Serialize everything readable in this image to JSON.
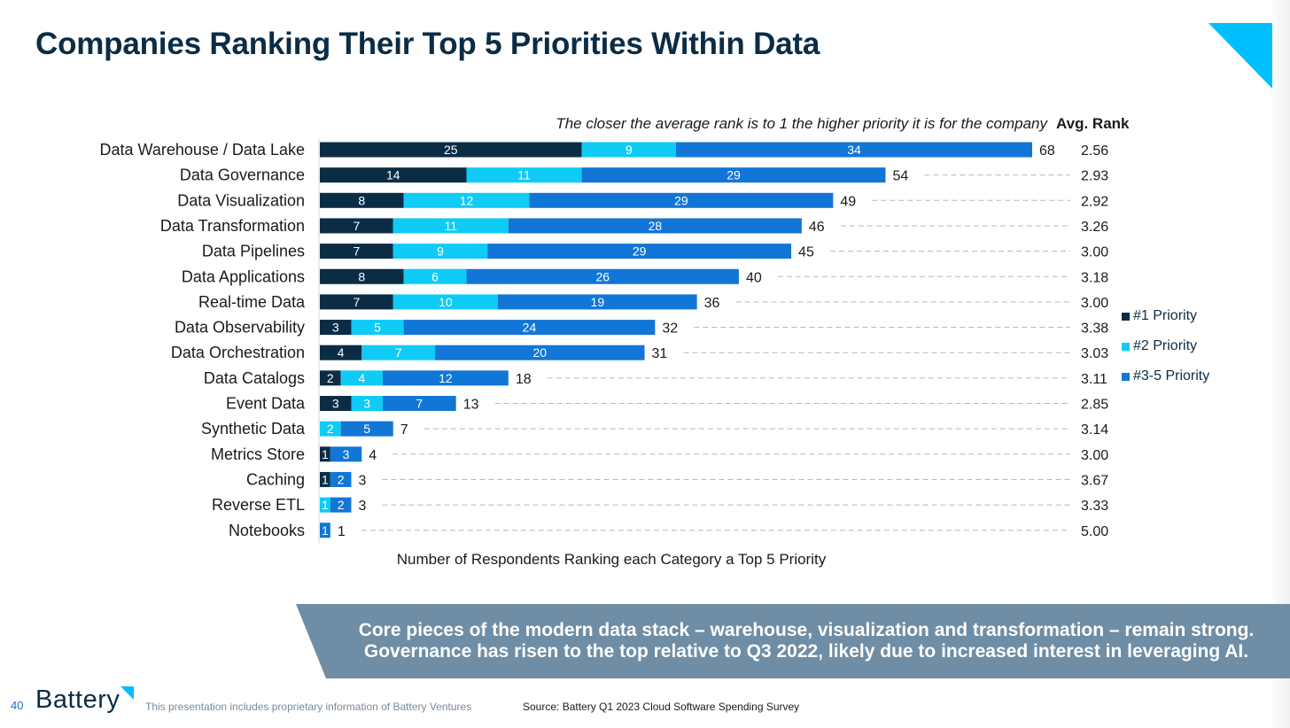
{
  "page": {
    "title": "Companies Ranking Their Top 5 Priorities Within Data",
    "subtitle": "The closer the average rank is to 1 the higher priority it is for the company",
    "rank_header": "Avg. Rank",
    "callout_line1": "Core pieces of the modern data stack – warehouse, visualization and transformation – remain strong.",
    "callout_line2": "Governance has risen to the top relative to Q3 2022, likely due to increased interest in leveraging AI.",
    "page_number": "40",
    "logo_text": "Battery",
    "footer_note": "This presentation includes proprietary information of Battery Ventures",
    "source": "Source: Battery Q1 2023 Cloud Software Spending Survey",
    "accent_color": "#00bfff"
  },
  "chart_data": {
    "type": "bar",
    "orientation": "horizontal",
    "stacked": true,
    "xlabel": "Number of Respondents Ranking each Category a Top 5 Priority",
    "xlim": [
      0,
      68
    ],
    "legend_position": "right",
    "categories": [
      "Data Warehouse / Data Lake",
      "Data Governance",
      "Data Visualization",
      "Data Transformation",
      "Data Pipelines",
      "Data Applications",
      "Real-time Data",
      "Data Observability",
      "Data Orchestration",
      "Data Catalogs",
      "Event Data",
      "Synthetic Data",
      "Metrics Store",
      "Caching",
      "Reverse ETL",
      "Notebooks"
    ],
    "series": [
      {
        "name": "#1 Priority",
        "color": "#0b2c45",
        "values": [
          25,
          14,
          8,
          7,
          7,
          8,
          7,
          3,
          4,
          2,
          3,
          0,
          1,
          1,
          0,
          0
        ]
      },
      {
        "name": "#2 Priority",
        "color": "#0fcbf5",
        "values": [
          9,
          11,
          12,
          11,
          9,
          6,
          10,
          5,
          7,
          4,
          3,
          2,
          0,
          0,
          1,
          0
        ]
      },
      {
        "name": "#3-5 Priority",
        "color": "#1276d6",
        "values": [
          34,
          29,
          29,
          28,
          29,
          26,
          19,
          24,
          20,
          12,
          7,
          5,
          3,
          2,
          2,
          1
        ]
      }
    ],
    "totals": [
      68,
      54,
      49,
      46,
      45,
      40,
      36,
      32,
      31,
      18,
      13,
      7,
      4,
      3,
      3,
      1
    ],
    "avg_rank": [
      "2.56",
      "2.93",
      "2.92",
      "3.26",
      "3.00",
      "3.18",
      "3.00",
      "3.38",
      "3.03",
      "3.11",
      "2.85",
      "3.14",
      "3.00",
      "3.67",
      "3.33",
      "5.00"
    ]
  }
}
